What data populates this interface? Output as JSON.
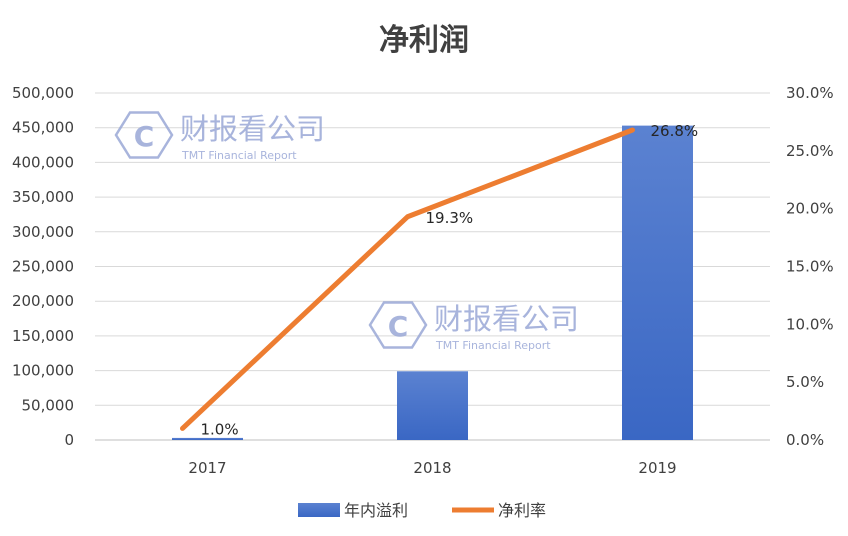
{
  "chart_data": {
    "type": "bar",
    "title": "净利润",
    "categories": [
      "2017",
      "2018",
      "2019"
    ],
    "series": [
      {
        "name": "年内溢利",
        "kind": "bar",
        "axis": "left",
        "color": "#3a67c4",
        "values": [
          3000,
          99000,
          453000
        ]
      },
      {
        "name": "净利率",
        "kind": "line",
        "axis": "right",
        "color": "#ed7d31",
        "values": [
          1.0,
          19.3,
          26.8
        ],
        "data_labels": [
          "1.0%",
          "19.3%",
          "26.8%"
        ]
      }
    ],
    "y_left": {
      "min": 0,
      "max": 500000,
      "ticks": [
        "0",
        "50,000",
        "100,000",
        "150,000",
        "200,000",
        "250,000",
        "300,000",
        "350,000",
        "400,000",
        "450,000",
        "500,000"
      ]
    },
    "y_right": {
      "min": 0,
      "max": 30,
      "ticks": [
        "0.0%",
        "5.0%",
        "10.0%",
        "15.0%",
        "20.0%",
        "25.0%",
        "30.0%"
      ]
    },
    "grid": true,
    "legend_position": "bottom",
    "watermark": {
      "text_cn": "财报看公司",
      "text_en": "TMT Financial Report",
      "logo_letter": "C",
      "color": "#9aa8d6"
    }
  }
}
